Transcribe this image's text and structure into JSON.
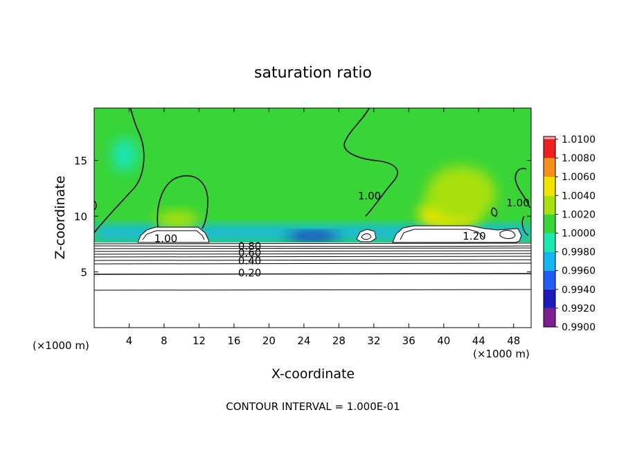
{
  "chart_data": {
    "type": "heatmap",
    "title": "saturation ratio",
    "xlabel": "X-coordinate",
    "ylabel": "Z-coordinate",
    "x_unit": "(×1000 m)",
    "x_unit_right": "(×1000 m)",
    "footnote": "CONTOUR INTERVAL = 1.000E-01",
    "xlim": [
      0,
      50
    ],
    "ylim": [
      0,
      19.7
    ],
    "xticks": [
      4,
      8,
      12,
      16,
      20,
      24,
      28,
      32,
      36,
      40,
      44,
      48
    ],
    "xtick_labels": [
      "4",
      "8",
      "12",
      "16",
      "20",
      "24",
      "28",
      "32",
      "36",
      "40",
      "44",
      "48"
    ],
    "yticks": [
      5,
      10,
      15
    ],
    "ytick_labels": [
      "5",
      "10",
      "15"
    ],
    "colorbar": {
      "levels": [
        0.99,
        0.992,
        0.994,
        0.996,
        0.998,
        1.0,
        1.002,
        1.004,
        1.006,
        1.008,
        1.01
      ],
      "labels": [
        "0.9900",
        "0.9920",
        "0.9940",
        "0.9960",
        "0.9980",
        "1.0000",
        "1.0020",
        "1.0040",
        "1.0060",
        "1.0080",
        "1.0100"
      ],
      "colors": [
        "#7a2090",
        "#1c1cb8",
        "#1f5ef0",
        "#13b8f0",
        "#1ee6b0",
        "#38d438",
        "#a8e010",
        "#f0e400",
        "#f5901e",
        "#ee2020",
        "#ff9e9e"
      ]
    },
    "contour_labels": [
      {
        "text": "1.00",
        "x": 8.2,
        "z": 8.0
      },
      {
        "text": "0.80",
        "x": 17.8,
        "z": 7.3
      },
      {
        "text": "0.60",
        "x": 17.8,
        "z": 6.7
      },
      {
        "text": "0.40",
        "x": 17.8,
        "z": 6.0
      },
      {
        "text": "0.20",
        "x": 17.8,
        "z": 4.9
      },
      {
        "text": "1.00",
        "x": 31.5,
        "z": 11.8
      },
      {
        "text": "1.20",
        "x": 43.5,
        "z": 8.2
      },
      {
        "text": "1.00",
        "x": 48.5,
        "z": 11.2
      }
    ],
    "field_regions": [
      {
        "level": 1.0005,
        "shape": "background"
      },
      {
        "level": 0.997,
        "shape": "band",
        "x": [
          0,
          50
        ],
        "z": [
          7.8,
          9.2
        ]
      },
      {
        "level": 0.9925,
        "shape": "patch",
        "x": [
          22,
          28
        ],
        "z": [
          7.8,
          8.6
        ]
      },
      {
        "level": 1.0055,
        "shape": "patch",
        "x": [
          37,
          44
        ],
        "z": [
          8.8,
          11.5
        ]
      },
      {
        "level": 1.0035,
        "shape": "patch",
        "x": [
          38,
          46
        ],
        "z": [
          9.5,
          14.5
        ]
      },
      {
        "level": 1.0025,
        "shape": "patch",
        "x": [
          7,
          12
        ],
        "z": [
          8.8,
          10.5
        ]
      },
      {
        "level": 0.9985,
        "shape": "patch",
        "x": [
          2,
          5
        ],
        "z": [
          14,
          17
        ]
      }
    ]
  }
}
